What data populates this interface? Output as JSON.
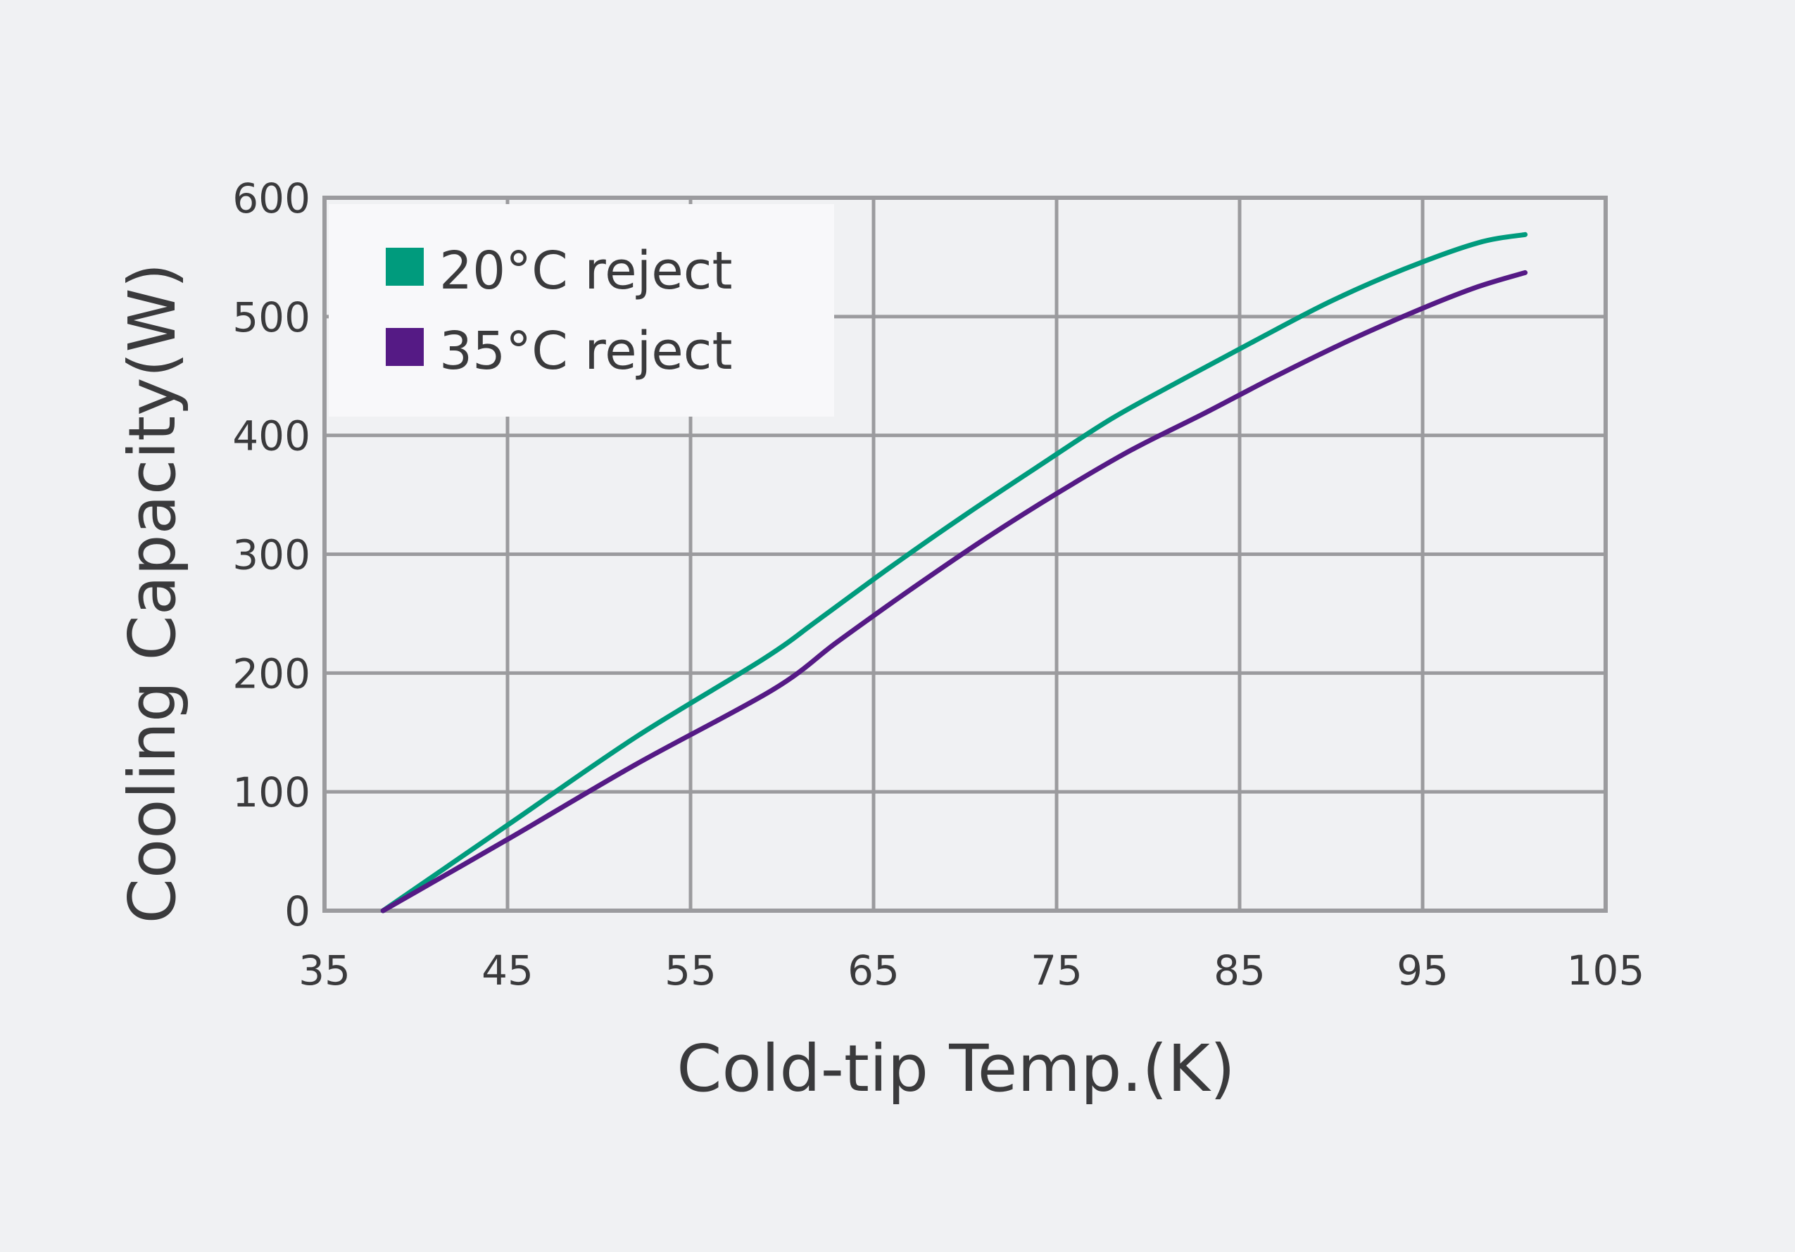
{
  "chart_data": {
    "type": "line",
    "xlabel": "Cold-tip Temp.(K)",
    "ylabel": "Cooling Capacity(W)",
    "xlim": [
      35,
      105
    ],
    "ylim": [
      0,
      600
    ],
    "xticks": [
      "35",
      "45",
      "55",
      "65",
      "75",
      "85",
      "95",
      "105"
    ],
    "yticks": [
      "0",
      "100",
      "200",
      "300",
      "400",
      "500",
      "600"
    ],
    "grid": true,
    "legend_position": "top-left",
    "series": [
      {
        "name": "20°C reject",
        "color": "#009b7d",
        "x": [
          38.2,
          45,
          52,
          59,
          62,
          66,
          70,
          74,
          78,
          82,
          86,
          90,
          94,
          98,
          100.6
        ],
        "y": [
          0,
          72,
          146,
          212,
          245,
          290,
          333,
          374,
          414,
          448,
          481,
          513,
          540,
          562,
          569
        ]
      },
      {
        "name": "35°C reject",
        "color": "#551a85",
        "x": [
          38.2,
          45,
          52,
          59.5,
          63,
          67,
          71,
          75,
          79,
          83,
          87,
          91,
          95,
          98,
          100.6
        ],
        "y": [
          0,
          60,
          123,
          186,
          226,
          270,
          312,
          351,
          387,
          418,
          450,
          480,
          507,
          525,
          537
        ]
      }
    ]
  }
}
